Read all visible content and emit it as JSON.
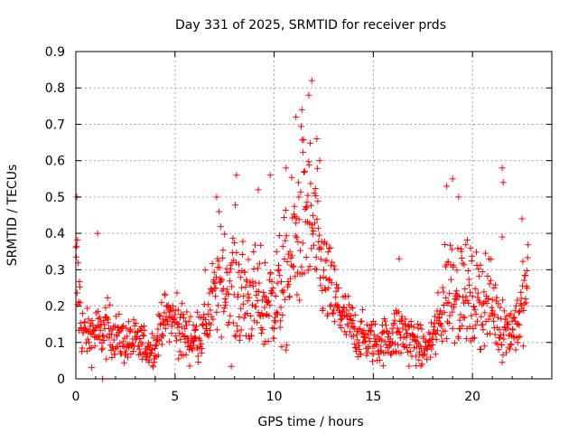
{
  "chart_data": {
    "type": "scatter",
    "title": "Day 331 of 2025, SRMTID for receiver prds",
    "xlabel": "GPS time / hours",
    "ylabel": "SRMTID / TECUs",
    "xlim": [
      0,
      24
    ],
    "ylim": [
      0,
      0.9
    ],
    "xticks": [
      0,
      5,
      10,
      15,
      20
    ],
    "xtick_labels": [
      "0",
      "5",
      "10",
      "15",
      "20"
    ],
    "yticks": [
      0,
      0.1,
      0.2,
      0.3,
      0.4,
      0.5,
      0.6,
      0.7,
      0.8,
      0.9
    ],
    "ytick_labels": [
      "0",
      "0.1",
      "0.2",
      "0.3",
      "0.4",
      "0.5",
      "0.6",
      "0.7",
      "0.8",
      "0.9"
    ],
    "grid": true,
    "marker": "+",
    "color": "#ff0000",
    "series": [
      {
        "name": "SRMTID",
        "envelope_hours": [
          0.0,
          0.1,
          0.3,
          0.5,
          1.0,
          1.3,
          1.5,
          2.0,
          2.5,
          3.0,
          3.5,
          4.0,
          4.3,
          4.6,
          5.0,
          5.5,
          6.0,
          6.5,
          7.0,
          7.3,
          7.6,
          8.0,
          8.5,
          9.0,
          9.5,
          10.0,
          10.5,
          11.0,
          11.3,
          11.7,
          12.0,
          12.3,
          12.7,
          13.0,
          13.5,
          13.8,
          14.2,
          14.7,
          15.2,
          15.7,
          16.2,
          16.7,
          17.2,
          17.6,
          18.0,
          18.3,
          18.6,
          19.0,
          19.3,
          19.7,
          20.0,
          20.5,
          21.0,
          21.3,
          21.6,
          22.0,
          22.4,
          22.8
        ],
        "envelope_median": [
          0.28,
          0.26,
          0.14,
          0.12,
          0.13,
          0.12,
          0.14,
          0.12,
          0.1,
          0.1,
          0.09,
          0.08,
          0.16,
          0.17,
          0.16,
          0.12,
          0.11,
          0.15,
          0.22,
          0.29,
          0.27,
          0.25,
          0.23,
          0.22,
          0.2,
          0.22,
          0.25,
          0.35,
          0.44,
          0.45,
          0.4,
          0.32,
          0.26,
          0.22,
          0.17,
          0.15,
          0.12,
          0.11,
          0.1,
          0.11,
          0.13,
          0.12,
          0.09,
          0.08,
          0.11,
          0.15,
          0.23,
          0.27,
          0.25,
          0.23,
          0.21,
          0.22,
          0.2,
          0.16,
          0.14,
          0.14,
          0.17,
          0.28
        ],
        "envelope_spread": [
          0.08,
          0.1,
          0.04,
          0.03,
          0.04,
          0.03,
          0.04,
          0.03,
          0.03,
          0.03,
          0.03,
          0.03,
          0.03,
          0.03,
          0.04,
          0.04,
          0.03,
          0.05,
          0.07,
          0.08,
          0.09,
          0.09,
          0.08,
          0.07,
          0.07,
          0.07,
          0.09,
          0.11,
          0.12,
          0.12,
          0.11,
          0.08,
          0.06,
          0.06,
          0.04,
          0.04,
          0.03,
          0.03,
          0.03,
          0.03,
          0.04,
          0.04,
          0.03,
          0.02,
          0.03,
          0.05,
          0.07,
          0.08,
          0.08,
          0.07,
          0.06,
          0.07,
          0.06,
          0.05,
          0.04,
          0.04,
          0.05,
          0.05
        ],
        "peaks": [
          {
            "x": 0.05,
            "y": 0.5
          },
          {
            "x": 1.1,
            "y": 0.4
          },
          {
            "x": 7.1,
            "y": 0.5
          },
          {
            "x": 8.1,
            "y": 0.56
          },
          {
            "x": 9.2,
            "y": 0.52
          },
          {
            "x": 9.8,
            "y": 0.56
          },
          {
            "x": 10.6,
            "y": 0.58
          },
          {
            "x": 11.1,
            "y": 0.72
          },
          {
            "x": 11.4,
            "y": 0.74
          },
          {
            "x": 11.75,
            "y": 0.78
          },
          {
            "x": 11.9,
            "y": 0.82
          },
          {
            "x": 12.15,
            "y": 0.66
          },
          {
            "x": 12.3,
            "y": 0.6
          },
          {
            "x": 16.3,
            "y": 0.33
          },
          {
            "x": 18.7,
            "y": 0.53
          },
          {
            "x": 19.0,
            "y": 0.55
          },
          {
            "x": 19.3,
            "y": 0.5
          },
          {
            "x": 21.5,
            "y": 0.58
          },
          {
            "x": 21.55,
            "y": 0.54
          },
          {
            "x": 21.5,
            "y": 0.39
          },
          {
            "x": 22.5,
            "y": 0.44
          },
          {
            "x": 1.35,
            "y": 0.0
          },
          {
            "x": 4.0,
            "y": 0.0
          }
        ]
      }
    ]
  }
}
